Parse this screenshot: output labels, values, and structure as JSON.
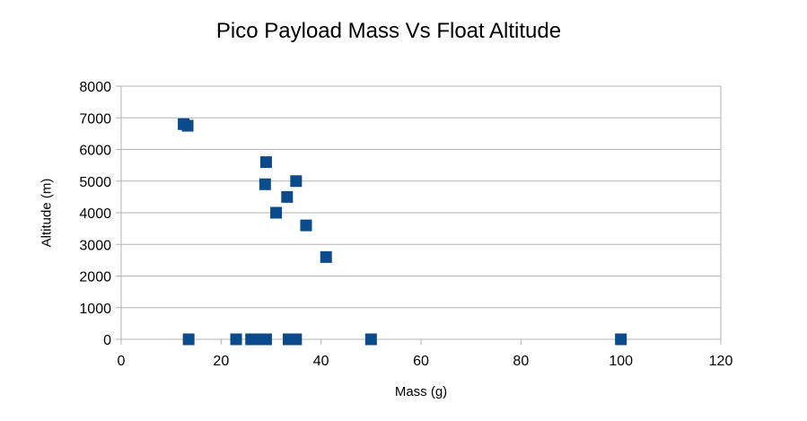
{
  "chart_data": {
    "type": "scatter",
    "title": "Pico Payload Mass Vs Float Altitude",
    "xlabel": "Mass (g)",
    "ylabel": "Altitude (m)",
    "xlim": [
      0,
      120
    ],
    "ylim": [
      0,
      8000
    ],
    "xticks": [
      0,
      20,
      40,
      60,
      80,
      100,
      120
    ],
    "yticks": [
      0,
      1000,
      2000,
      3000,
      4000,
      5000,
      6000,
      7000,
      8000
    ],
    "grid": "horizontal",
    "legend": "none",
    "series": [
      {
        "color": "#0b4a8b",
        "marker": "square",
        "points": [
          {
            "x": 12.5,
            "y": 6800
          },
          {
            "x": 13.3,
            "y": 6750
          },
          {
            "x": 29.0,
            "y": 5600
          },
          {
            "x": 35.0,
            "y": 5000
          },
          {
            "x": 28.8,
            "y": 4900
          },
          {
            "x": 33.2,
            "y": 4500
          },
          {
            "x": 31.0,
            "y": 4000
          },
          {
            "x": 37.0,
            "y": 3600
          },
          {
            "x": 41.0,
            "y": 2600
          },
          {
            "x": 13.5,
            "y": 0
          },
          {
            "x": 23.0,
            "y": 0
          },
          {
            "x": 26.0,
            "y": 0
          },
          {
            "x": 27.0,
            "y": 0
          },
          {
            "x": 28.0,
            "y": 0
          },
          {
            "x": 29.0,
            "y": 0
          },
          {
            "x": 33.5,
            "y": 0
          },
          {
            "x": 35.0,
            "y": 0
          },
          {
            "x": 50.0,
            "y": 0
          },
          {
            "x": 100.0,
            "y": 0
          }
        ]
      }
    ]
  }
}
